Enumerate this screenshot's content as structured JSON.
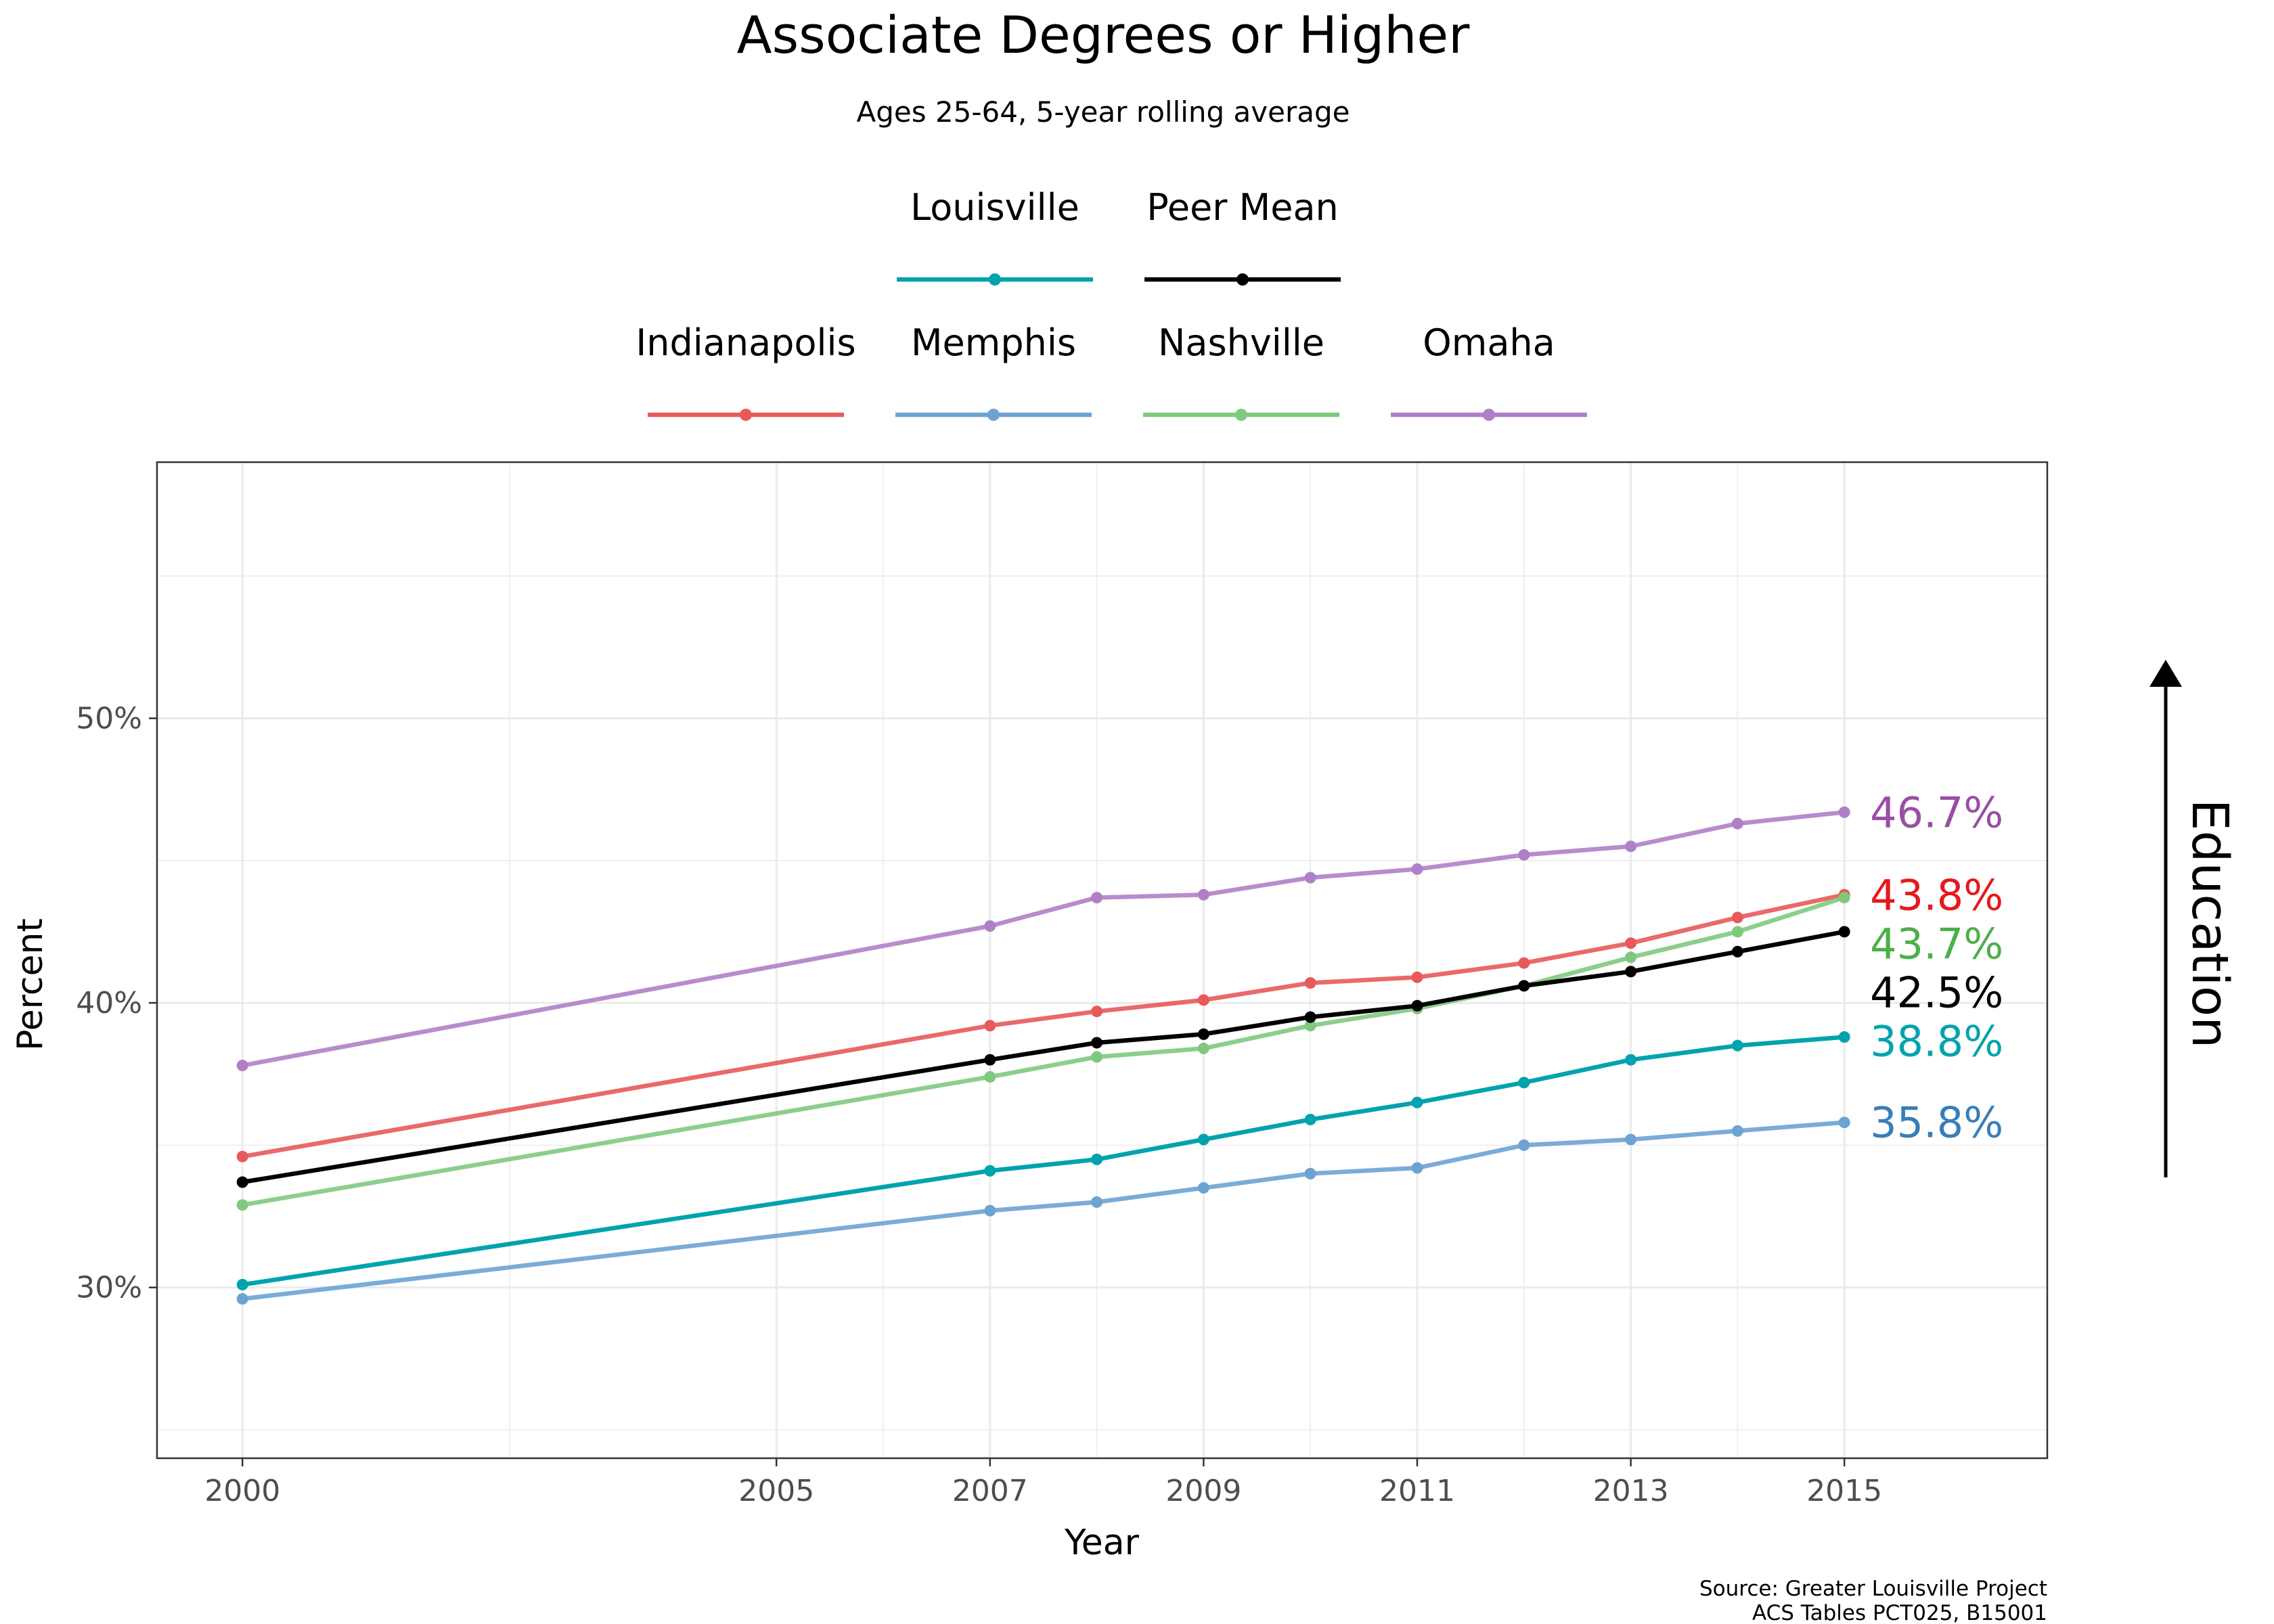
{
  "chart_data": {
    "type": "line",
    "title": "Associate Degrees or Higher",
    "subtitle": "Ages 25-64, 5-year rolling average",
    "xlabel": "Year",
    "ylabel": "Percent",
    "x": [
      2000,
      2007,
      2008,
      2009,
      2010,
      2011,
      2012,
      2013,
      2014,
      2015
    ],
    "xticks": [
      2000,
      2005,
      2007,
      2009,
      2011,
      2013,
      2015
    ],
    "xlim": [
      1999.2,
      2016.9
    ],
    "yticks": [
      30,
      40,
      50
    ],
    "ytick_labels": [
      "30%",
      "40%",
      "50%"
    ],
    "ylim": [
      24,
      59
    ],
    "grid": true,
    "legend_position": "top",
    "series": [
      {
        "name": "Louisville",
        "color": "#00a3ad",
        "group": "main",
        "end_label": "38.8%",
        "values": [
          30.1,
          34.1,
          34.5,
          35.2,
          35.9,
          36.5,
          37.2,
          38.0,
          38.5,
          38.8
        ]
      },
      {
        "name": "Peer Mean",
        "color": "#000000",
        "group": "main",
        "end_label": "42.5%",
        "values": [
          33.7,
          38.0,
          38.6,
          38.9,
          39.5,
          39.9,
          40.6,
          41.1,
          41.8,
          42.5
        ]
      },
      {
        "name": "Indianapolis",
        "color": "#e8595a",
        "group": "peer",
        "end_label": "43.8%",
        "label_color": "#e41a1c",
        "values": [
          34.6,
          39.2,
          39.7,
          40.1,
          40.7,
          40.9,
          41.4,
          42.1,
          43.0,
          43.8
        ]
      },
      {
        "name": "Memphis",
        "color": "#6da3d3",
        "group": "peer",
        "end_label": "35.8%",
        "label_color": "#377eb8",
        "values": [
          29.6,
          32.7,
          33.0,
          33.5,
          34.0,
          34.2,
          35.0,
          35.2,
          35.5,
          35.8
        ]
      },
      {
        "name": "Nashville",
        "color": "#7fc97f",
        "group": "peer",
        "end_label": "43.7%",
        "label_color": "#4daf4a",
        "values": [
          32.9,
          37.4,
          38.1,
          38.4,
          39.2,
          39.8,
          40.6,
          41.6,
          42.5,
          43.7
        ]
      },
      {
        "name": "Omaha",
        "color": "#b07fc7",
        "group": "peer",
        "end_label": "46.7%",
        "label_color": "#984ea3",
        "values": [
          37.8,
          42.7,
          43.7,
          43.8,
          44.4,
          44.7,
          45.2,
          45.5,
          46.3,
          46.7
        ]
      }
    ],
    "side_label": "Education",
    "source": [
      "Source: Greater Louisville Project",
      "ACS Tables PCT025, B15001"
    ]
  }
}
